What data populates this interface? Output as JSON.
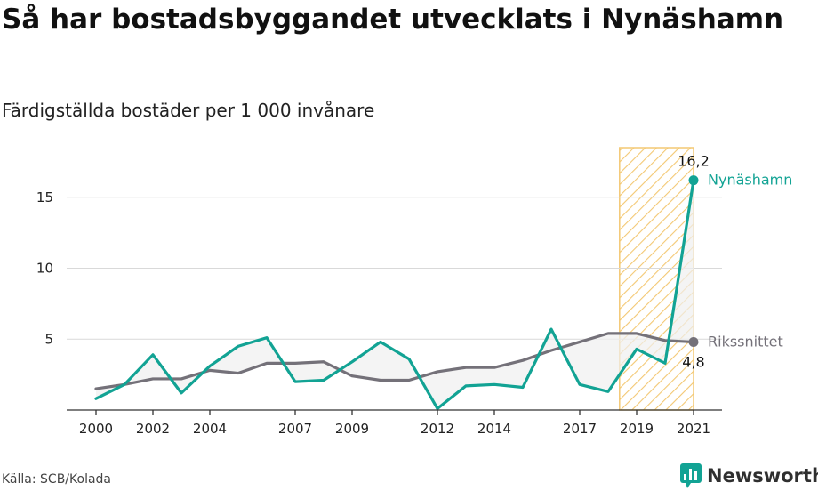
{
  "title": "Så har bostadsbyggandet utvecklats i Nynäshamn",
  "subtitle": "Färdigställda bostäder per 1 000 invånare",
  "source": "Källa: SCB/Kolada",
  "brand": {
    "name": "Newsworthy",
    "logo_icon": "chart-bubble-icon"
  },
  "colors": {
    "nynashamn": "#12a394",
    "riket": "#747179",
    "highlight": "#f3c873"
  },
  "chart_data": {
    "type": "line",
    "xlim": [
      2000,
      2021
    ],
    "ylim": [
      0,
      18.5
    ],
    "y_ticks": [
      5,
      10,
      15
    ],
    "x_ticks": [
      "2000",
      "2002",
      "2004",
      "2007",
      "2009",
      "2012",
      "2014",
      "2017",
      "2019",
      "2021"
    ],
    "x_tick_values": [
      2000,
      2002,
      2004,
      2007,
      2009,
      2012,
      2014,
      2017,
      2019,
      2021
    ],
    "x": [
      2000,
      2001,
      2002,
      2003,
      2004,
      2005,
      2006,
      2007,
      2008,
      2009,
      2010,
      2011,
      2012,
      2013,
      2014,
      2015,
      2016,
      2017,
      2018,
      2019,
      2020,
      2021
    ],
    "highlight_range": [
      2018.4,
      2021
    ],
    "series": [
      {
        "name": "Nynäshamn",
        "values": [
          0.8,
          1.8,
          3.9,
          1.2,
          3.1,
          4.5,
          5.1,
          2.0,
          2.1,
          3.4,
          4.8,
          3.6,
          0.1,
          1.7,
          1.8,
          1.6,
          5.7,
          1.8,
          1.3,
          4.3,
          3.3,
          16.2
        ],
        "end_label": "16,2"
      },
      {
        "name": "Rikssnittet",
        "values": [
          1.5,
          1.8,
          2.2,
          2.2,
          2.8,
          2.6,
          3.3,
          3.3,
          3.4,
          2.4,
          2.1,
          2.1,
          2.7,
          3.0,
          3.0,
          3.5,
          4.2,
          4.8,
          5.4,
          5.4,
          4.9,
          4.8
        ],
        "end_label": "4,8"
      }
    ]
  }
}
